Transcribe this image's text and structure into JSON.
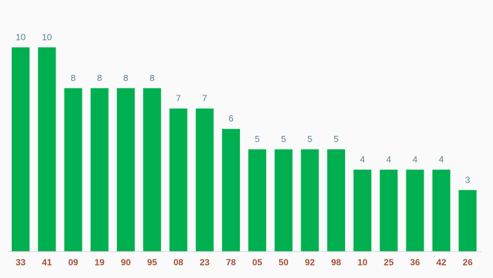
{
  "chart_data": {
    "type": "bar",
    "categories": [
      "33",
      "41",
      "09",
      "19",
      "90",
      "95",
      "08",
      "23",
      "78",
      "05",
      "50",
      "92",
      "98",
      "10",
      "25",
      "36",
      "42",
      "26"
    ],
    "values": [
      10,
      10,
      8,
      8,
      8,
      8,
      7,
      7,
      6,
      5,
      5,
      5,
      5,
      4,
      4,
      4,
      4,
      3
    ],
    "color": "#00b050"
  }
}
